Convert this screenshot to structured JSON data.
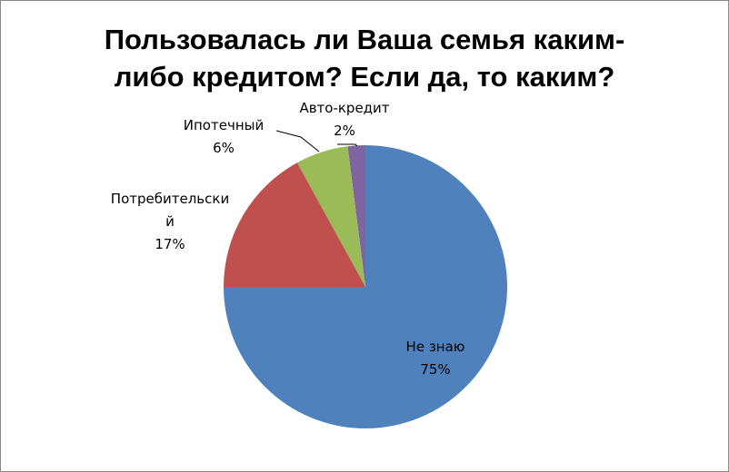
{
  "chart_data": {
    "type": "pie",
    "title": "Пользовалась ли Ваша семья каким-либо кредитом? Если да, то каким?",
    "categories": [
      "Не знаю",
      "Потребительский",
      "Ипотечный",
      "Авто-кредит"
    ],
    "values": [
      75,
      17,
      6,
      2
    ],
    "value_labels": [
      "75%",
      "17%",
      "6%",
      "2%"
    ],
    "colors": [
      "#4f81bd",
      "#c0504d",
      "#9bbb59",
      "#8064a2"
    ],
    "start_angle": 90,
    "direction": "clockwise"
  }
}
